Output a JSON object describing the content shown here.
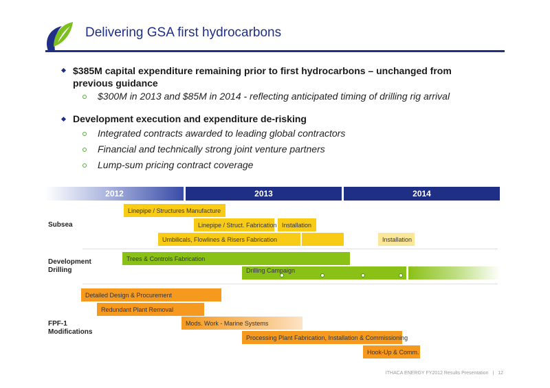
{
  "header": {
    "title": "Delivering GSA first hydrocarbons"
  },
  "bullets": [
    {
      "text": "$385M capital expenditure remaining prior to first hydrocarbons – unchanged from previous guidance",
      "subs": [
        "$300M in 2013 and $85M in 2014 - reflecting anticipated timing of drilling rig arrival"
      ]
    },
    {
      "text": "Development execution and expenditure de-risking",
      "subs": [
        "Integrated contracts awarded to leading global contractors",
        "Financial and technically strong joint venture partners",
        "Lump-sum pricing contract coverage"
      ]
    }
  ],
  "timeline": {
    "years": [
      "2012",
      "2013",
      "2014"
    ],
    "rows": {
      "subsea": "Subsea",
      "drilling": "Development Drilling",
      "fpf": "FPF-1 Modifications"
    },
    "tasks": {
      "linepipe_manufacture": "Linepipe / Structures Manufacture",
      "linepipe_fabrication": "Linepipe / Struct. Fabrication",
      "installation_1": "Installation",
      "umbilicals": "Umbilicals, Flowlines & Risers Fabrication",
      "installation_2": "Installation",
      "trees_controls": "Trees & Controls Fabrication",
      "drilling_campaign": "Drilling Campaign",
      "detailed_design": "Detailed Design & Procurement",
      "redundant_plant": "Redundant Plant Removal",
      "mods_work": "Mods. Work - Marine Systems",
      "processing_plant": "Processing Plant Fabrication, Installation & Commissioning",
      "hookup": "Hook-Up & Comm."
    },
    "colors": {
      "subsea": "#f8cc16",
      "drilling": "#8ac117",
      "fpf": "#f59a1e",
      "year": "#1f2f86"
    }
  },
  "footer": {
    "company": "ITHACA ENERGY FY2012 Results Presentation",
    "page": "12"
  }
}
